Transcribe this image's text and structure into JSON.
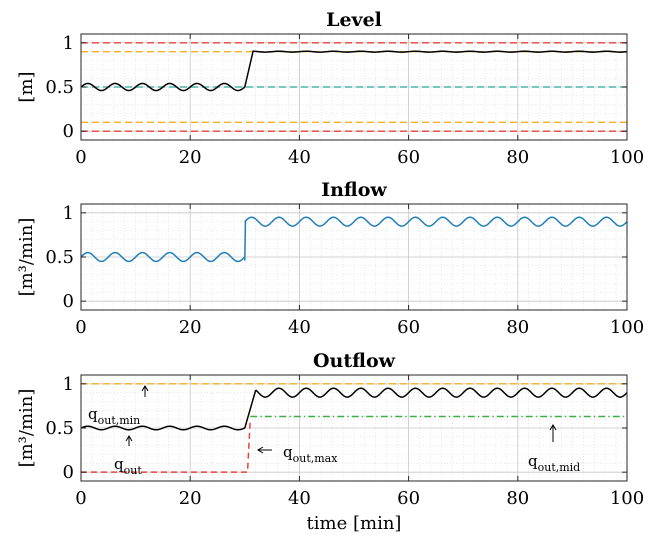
{
  "chart_data": [
    {
      "type": "line",
      "title": "Level",
      "ylabel": "[m]",
      "xlabel": "",
      "xlim": [
        0,
        100
      ],
      "ylim": [
        -0.1,
        1.1
      ],
      "xticks": [
        0,
        20,
        40,
        60,
        80,
        100
      ],
      "yticks": [
        0,
        0.5,
        1
      ],
      "ytick_labels": [
        "0",
        "0.5",
        "1"
      ],
      "grid": true,
      "hlines": [
        {
          "y": 1.0,
          "color": "#e8403a",
          "style": "dashed"
        },
        {
          "y": 0.9,
          "color": "#f2b01e",
          "style": "dashed"
        },
        {
          "y": 0.5,
          "color": "#26a69a",
          "style": "dashed"
        },
        {
          "y": 0.1,
          "color": "#f2b01e",
          "style": "dashed"
        },
        {
          "y": 0.0,
          "color": "#e8403a",
          "style": "dashed"
        }
      ],
      "series": [
        {
          "color": "#000000",
          "segments": [
            {
              "x0": 0,
              "x1": 30,
              "base": 0.5,
              "amp": 0.04,
              "period": 5
            },
            {
              "x0": 30,
              "x1": 31.5,
              "y0": 0.5,
              "y1": 0.9,
              "ramp": true
            },
            {
              "x0": 31.5,
              "x1": 100,
              "base": 0.9,
              "amp": 0.005,
              "period": 5
            }
          ]
        }
      ]
    },
    {
      "type": "line",
      "title": "Inflow",
      "ylabel": "[m³/min]",
      "xlabel": "",
      "xlim": [
        0,
        100
      ],
      "ylim": [
        -0.1,
        1.1
      ],
      "xticks": [
        0,
        20,
        40,
        60,
        80,
        100
      ],
      "yticks": [
        0,
        0.5,
        1
      ],
      "ytick_labels": [
        "0",
        "0.5",
        "1"
      ],
      "grid": true,
      "hlines": [],
      "series": [
        {
          "color": "#1f7fb8",
          "segments": [
            {
              "x0": 0,
              "x1": 30,
              "base": 0.5,
              "amp": 0.05,
              "period": 5
            },
            {
              "x0": 30,
              "x1": 30.1,
              "y0": 0.46,
              "y1": 0.85,
              "ramp": true
            },
            {
              "x0": 30.1,
              "x1": 100,
              "base": 0.9,
              "amp": 0.05,
              "period": 5,
              "phase_x": 30
            }
          ]
        }
      ]
    },
    {
      "type": "line",
      "title": "Outflow",
      "ylabel": "[m³/min]",
      "xlabel": "time [min]",
      "xlim": [
        0,
        100
      ],
      "ylim": [
        -0.1,
        1.1
      ],
      "xticks": [
        0,
        20,
        40,
        60,
        80,
        100
      ],
      "yticks": [
        0,
        0.5,
        1
      ],
      "ytick_labels": [
        "0",
        "0.5",
        "1"
      ],
      "grid": true,
      "hlines": [
        {
          "y": 1.0,
          "color": "#f2b01e",
          "style": "dashed"
        }
      ],
      "series": [
        {
          "color": "#000000",
          "segments": [
            {
              "x0": 0,
              "x1": 30,
              "base": 0.5,
              "amp": 0.02,
              "period": 5
            },
            {
              "x0": 30,
              "x1": 32,
              "y0": 0.5,
              "y1": 0.93,
              "ramp": true
            },
            {
              "x0": 32,
              "x1": 100,
              "base": 0.9,
              "amp": 0.05,
              "period": 5,
              "phase_x": 30
            }
          ]
        },
        {
          "color": "#e8403a",
          "style": "dashed",
          "points": [
            [
              0,
              0
            ],
            [
              30.5,
              0
            ],
            [
              31,
              0.6
            ]
          ]
        },
        {
          "color": "#3cb043",
          "style": "dashdot",
          "points": [
            [
              31,
              0.63
            ],
            [
              100,
              0.63
            ]
          ]
        }
      ],
      "annotations": [
        {
          "base": "q",
          "sub": "out,min",
          "arrow": "up"
        },
        {
          "base": "q",
          "sub": "out",
          "arrow": "up"
        },
        {
          "base": "q",
          "sub": "out,max",
          "arrow": "left"
        },
        {
          "base": "q",
          "sub": "out,mid",
          "arrow": "up"
        }
      ]
    }
  ]
}
